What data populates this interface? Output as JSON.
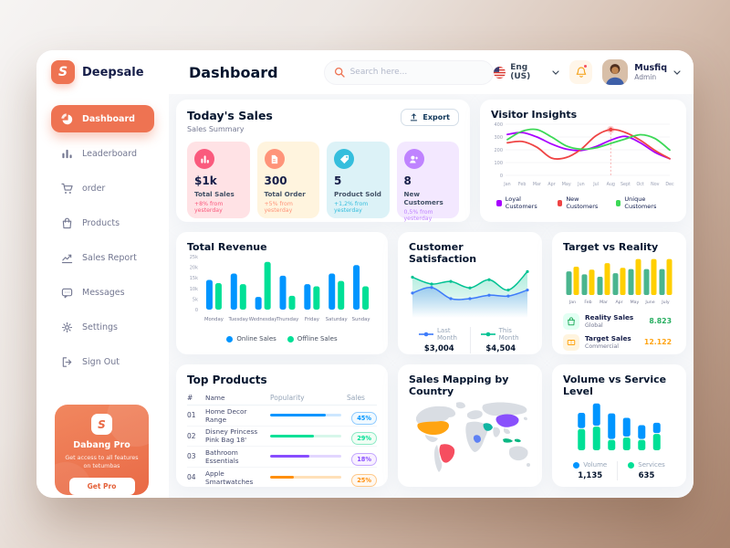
{
  "theme": {
    "accent": "#EE7352",
    "main_bg": "#F7F8FA",
    "text_dark": "#05152E",
    "text_gray": "#737791"
  },
  "brand": {
    "name": "Deepsale",
    "logo_letter": "S"
  },
  "header": {
    "title": "Dashboard",
    "search_placeholder": "Search here...",
    "language": "Eng (US)",
    "user_name": "Musfiq",
    "user_role": "Admin"
  },
  "sidebar": {
    "items": [
      {
        "label": "Dashboard",
        "icon": "pie-chart-icon",
        "active": true
      },
      {
        "label": "Leaderboard",
        "icon": "bar-chart-icon",
        "active": false
      },
      {
        "label": "order",
        "icon": "cart-icon",
        "active": false
      },
      {
        "label": "Products",
        "icon": "bag-icon",
        "active": false
      },
      {
        "label": "Sales Report",
        "icon": "chart-line-icon",
        "active": false
      },
      {
        "label": "Messages",
        "icon": "message-icon",
        "active": false
      },
      {
        "label": "Settings",
        "icon": "gear-icon",
        "active": false
      },
      {
        "label": "Sign Out",
        "icon": "signout-icon",
        "active": false
      }
    ],
    "promo": {
      "logo_letter": "S",
      "title": "Dabang Pro",
      "description": "Get access to all features on tetumbas",
      "button": "Get Pro"
    }
  },
  "today": {
    "title": "Today's Sales",
    "subtitle": "Sales Summary",
    "export_label": "Export",
    "cards": [
      {
        "icon": "stat-chart-icon",
        "value": "$1k",
        "label": "Total Sales",
        "delta": "+8% from yesterday",
        "bg": "#FFE2E5",
        "accent": "#FA5A7D"
      },
      {
        "icon": "stat-file-icon",
        "value": "300",
        "label": "Total Order",
        "delta": "+5% from yesterday",
        "bg": "#FFF4DE",
        "accent": "#FF947A"
      },
      {
        "icon": "stat-tag-icon",
        "value": "5",
        "label": "Product Sold",
        "delta": "+1,2% from yesterday",
        "bg": "#DCF2F7",
        "accent": "#35BEDD"
      },
      {
        "icon": "stat-user-plus-icon",
        "value": "8",
        "label": "New Customers",
        "delta": "0,5% from yesterday",
        "bg": "#F3E8FF",
        "accent": "#BF83FF"
      }
    ]
  },
  "target_card": {
    "rows": [
      {
        "icon": "bag-icon",
        "label": "Reality Sales",
        "sub": "Global",
        "value": "8.823",
        "value_color": "#27AE60",
        "icon_bg": "#E2FFF3",
        "icon_color": "#27AE60"
      },
      {
        "icon": "ticket-icon",
        "label": "Target Sales",
        "sub": "Commercial",
        "value": "12.122",
        "value_color": "#FFA412",
        "icon_bg": "#FFF4DE",
        "icon_color": "#FFA412"
      }
    ]
  },
  "products": {
    "title": "Top Products",
    "columns": [
      "#",
      "Name",
      "Popularity",
      "Sales"
    ],
    "rows": [
      {
        "num": "01",
        "name": "Home Decor Range",
        "popularity": 78,
        "sales": "45%",
        "bar": "#0095FF",
        "track": "#CDE7FF",
        "badge_bg": "#F0F9FF",
        "badge_border": "#8FCBFF"
      },
      {
        "num": "02",
        "name": "Disney Princess Pink Bag 18'",
        "popularity": 62,
        "sales": "29%",
        "bar": "#00E096",
        "track": "#D7F7EA",
        "badge_bg": "#F0FDF4",
        "badge_border": "#8EEAC6"
      },
      {
        "num": "03",
        "name": "Bathroom Essentials",
        "popularity": 55,
        "sales": "18%",
        "bar": "#884DFF",
        "track": "#E2D6FF",
        "badge_bg": "#F8F0FF",
        "badge_border": "#C5A8FF"
      },
      {
        "num": "04",
        "name": "Apple Smartwatches",
        "popularity": 33,
        "sales": "25%",
        "bar": "#FF8F0D",
        "track": "#FFE0B8",
        "badge_bg": "#FFF8F0",
        "badge_border": "#FFC98A"
      }
    ]
  },
  "map": {
    "title": "Sales Mapping by Country",
    "base_color": "#D9DDE3",
    "countries": {
      "usa": "#FFA412",
      "brazil": "#F64E60",
      "china": "#8950FC",
      "saudi_arabia": "#10B5A2",
      "dr_congo": "#5E81F4",
      "indonesia": "#0BB783"
    }
  },
  "chart_data": [
    {
      "type": "line",
      "title": "Visitor Insights",
      "x": [
        "Jan",
        "Feb",
        "Mar",
        "Apr",
        "May",
        "Jun",
        "Jul",
        "Aug",
        "Sept",
        "Oct",
        "Nov",
        "Dec"
      ],
      "ylim": [
        0,
        400
      ],
      "yticks": [
        0,
        100,
        200,
        300,
        400
      ],
      "grid": true,
      "legend_position": "bottom",
      "highlight_index": 7,
      "series": [
        {
          "name": "Loyal Customers",
          "color": "#A700FF",
          "values": [
            320,
            335,
            300,
            245,
            205,
            195,
            225,
            275,
            305,
            255,
            180,
            130
          ]
        },
        {
          "name": "New Customers",
          "color": "#EF4444",
          "values": [
            255,
            265,
            220,
            135,
            140,
            205,
            310,
            358,
            335,
            275,
            195,
            130
          ]
        },
        {
          "name": "Unique Customers",
          "color": "#3CD856",
          "values": [
            280,
            345,
            358,
            300,
            230,
            205,
            215,
            250,
            285,
            318,
            288,
            198
          ]
        }
      ]
    },
    {
      "type": "bar",
      "title": "Total Revenue",
      "categories": [
        "Monday",
        "Tuesday",
        "Wednesday",
        "Thursday",
        "Friday",
        "Saturday",
        "Sunday"
      ],
      "ylim": [
        0,
        25
      ],
      "unit": "k",
      "yticks": [
        "0",
        "5k",
        "10k",
        "15k",
        "20k",
        "25k"
      ],
      "legend_position": "bottom",
      "series": [
        {
          "name": "Online Sales",
          "color": "#0095FF",
          "values": [
            14,
            17,
            6,
            16,
            12,
            17,
            21
          ]
        },
        {
          "name": "Offline Sales",
          "color": "#00E096",
          "values": [
            12.5,
            12,
            22.5,
            6.5,
            11,
            13.5,
            11
          ]
        }
      ]
    },
    {
      "type": "area",
      "title": "Customer Satisfaction",
      "ylim": [
        0,
        100
      ],
      "legend_position": "bottom",
      "series": [
        {
          "name": "Last Month",
          "color": "#3E7BFA",
          "total": "$3,004",
          "values": [
            45,
            58,
            32,
            32,
            40,
            38,
            52
          ]
        },
        {
          "name": "This Month",
          "color": "#00C292",
          "total": "$4,504",
          "values": [
            82,
            66,
            72,
            57,
            76,
            52,
            95
          ]
        }
      ]
    },
    {
      "type": "bar",
      "title": "Target vs Reality",
      "categories": [
        "Jan",
        "Feb",
        "Mar",
        "Apr",
        "May",
        "June",
        "July"
      ],
      "ylim": [
        0,
        13
      ],
      "series": [
        {
          "name": "Reality Sales",
          "color": "#4AB58E",
          "values": [
            8,
            7,
            6.2,
            7.4,
            8.8,
            8.8,
            8.8
          ]
        },
        {
          "name": "Target Sales",
          "color": "#FFCF00",
          "values": [
            9.6,
            8.6,
            10.8,
            9.2,
            12.2,
            12.2,
            12.2
          ]
        }
      ]
    },
    {
      "type": "stacked-bar",
      "title": "Volume vs Service Level",
      "legend_position": "bottom",
      "series": [
        {
          "name": "Volume",
          "color": "#0095FF",
          "total": "1,135",
          "values": [
            31,
            45,
            52,
            38,
            28,
            21
          ]
        },
        {
          "name": "Services",
          "color": "#00E096",
          "total": "635",
          "values": [
            43,
            48,
            21,
            26,
            21,
            33
          ]
        }
      ]
    }
  ]
}
